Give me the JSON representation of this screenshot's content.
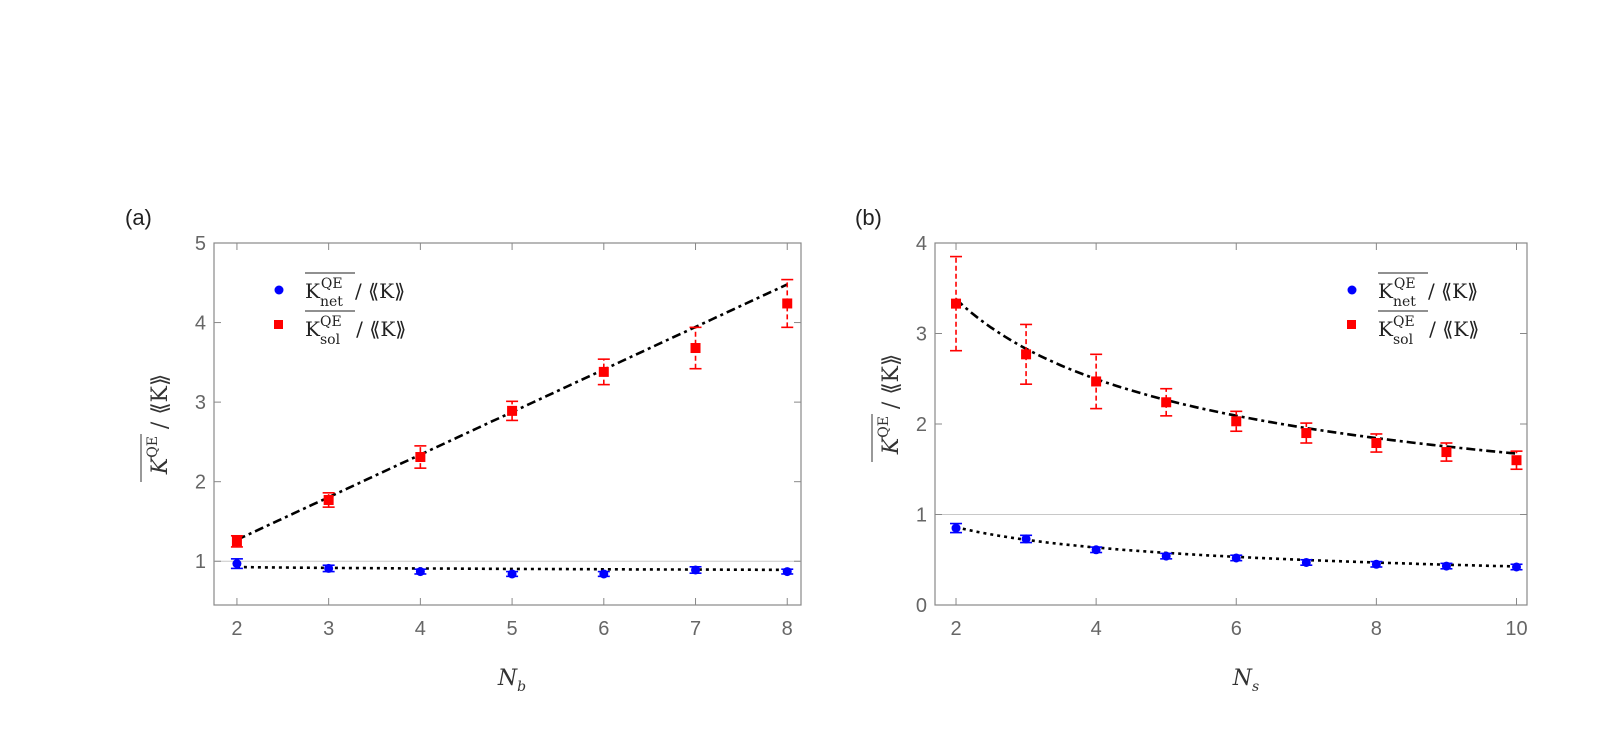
{
  "chart_data": [
    {
      "type": "scatter",
      "panel_label": "(a)",
      "xlabel": "N_b",
      "ylabel": "K^QE / ⟪K⟫",
      "xlim": [
        1.75,
        8.15
      ],
      "ylim": [
        0.45,
        5.0
      ],
      "x_ticks": [
        2,
        3,
        4,
        5,
        6,
        7,
        8
      ],
      "y_ticks": [
        1,
        2,
        3,
        4,
        5
      ],
      "reference_line": 1,
      "legend_placement": "top-left",
      "series": [
        {
          "name": "K_net^QE / ⟪K⟫",
          "color": "#0000ff",
          "marker": "circle",
          "x": [
            2,
            3,
            4,
            5,
            6,
            7,
            8
          ],
          "y": [
            0.97,
            0.91,
            0.87,
            0.84,
            0.84,
            0.89,
            0.87
          ],
          "err": [
            0.06,
            0.04,
            0.03,
            0.03,
            0.03,
            0.04,
            0.03
          ]
        },
        {
          "name": "K_sol^QE / ⟪K⟫",
          "color": "#ff0000",
          "marker": "square",
          "x": [
            2,
            3,
            4,
            5,
            6,
            7,
            8
          ],
          "y": [
            1.25,
            1.77,
            2.31,
            2.89,
            3.38,
            3.68,
            4.24
          ],
          "err": [
            0.07,
            0.09,
            0.14,
            0.12,
            0.16,
            0.26,
            0.3
          ]
        }
      ],
      "fits": [
        {
          "style": "dotted",
          "color": "#000000",
          "kind": "power",
          "a": 0.946,
          "b": 0.943,
          "c": -0.002
        },
        {
          "style": "dashdot",
          "color": "#000000",
          "kind": "linear",
          "a": 0.2,
          "b": 0.535
        }
      ]
    },
    {
      "type": "scatter",
      "panel_label": "(b)",
      "xlabel": "N_s",
      "ylabel": "K^QE / ⟪K⟫",
      "xlim": [
        1.7,
        10.15
      ],
      "ylim": [
        0,
        4.0
      ],
      "x_ticks": [
        2,
        4,
        6,
        8,
        10
      ],
      "y_ticks": [
        0,
        1,
        2,
        3,
        4
      ],
      "reference_line": 1,
      "legend_placement": "top-right",
      "series": [
        {
          "name": "K_net^QE / ⟪K⟫",
          "color": "#0000ff",
          "marker": "circle",
          "x": [
            2,
            3,
            4,
            5,
            6,
            7,
            8,
            9,
            10
          ],
          "y": [
            0.85,
            0.73,
            0.61,
            0.54,
            0.52,
            0.47,
            0.45,
            0.43,
            0.42
          ],
          "err": [
            0.05,
            0.04,
            0.03,
            0.03,
            0.03,
            0.03,
            0.03,
            0.03,
            0.03
          ]
        },
        {
          "name": "K_sol^QE / ⟪K⟫",
          "color": "#ff0000",
          "marker": "square",
          "x": [
            2,
            3,
            4,
            5,
            6,
            7,
            8,
            9,
            10
          ],
          "y": [
            3.33,
            2.77,
            2.47,
            2.24,
            2.03,
            1.9,
            1.79,
            1.69,
            1.6
          ],
          "err": [
            0.52,
            0.33,
            0.3,
            0.15,
            0.11,
            0.11,
            0.1,
            0.1,
            0.1
          ]
        }
      ],
      "fits": [
        {
          "style": "dotted",
          "color": "#000000",
          "kind": "power",
          "a": 0.86,
          "b": -0.437
        },
        {
          "style": "dashdot",
          "color": "#000000",
          "kind": "power",
          "a": 3.38,
          "b": -0.437
        }
      ]
    }
  ]
}
